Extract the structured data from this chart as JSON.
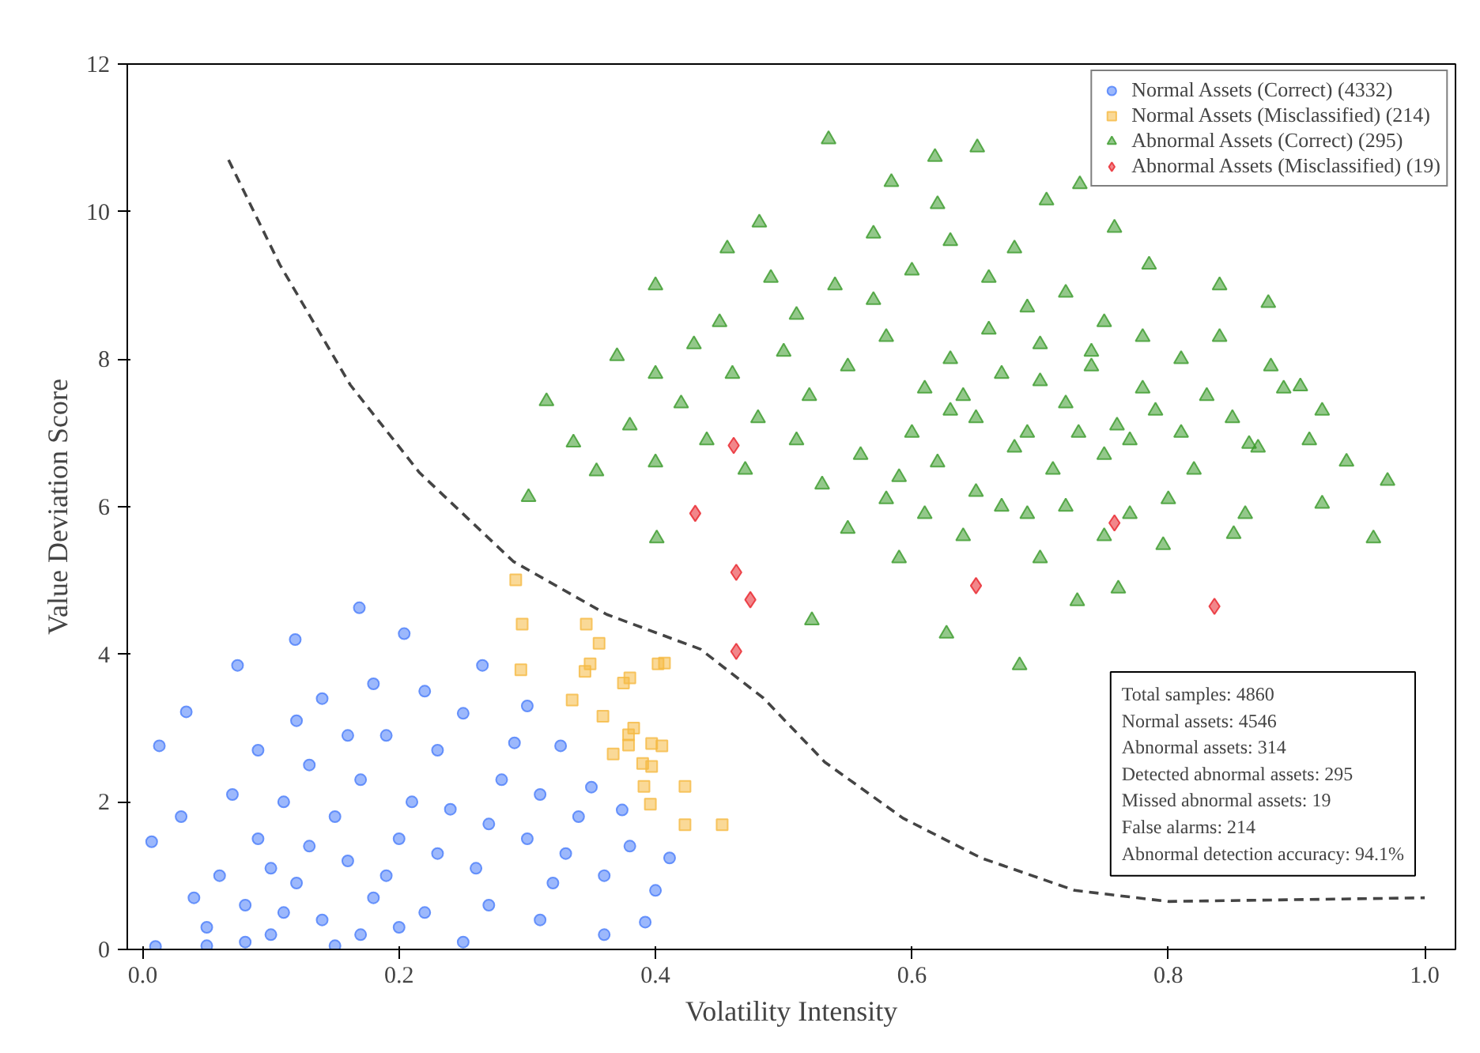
{
  "chart_data": {
    "type": "scatter",
    "xlabel": "Volatility Intensity",
    "ylabel": "Value Deviation Score",
    "xlim": [
      -0.012,
      1.024
    ],
    "ylim": [
      0,
      12
    ],
    "xticks": [
      {
        "value": 0,
        "label": "0.0"
      },
      {
        "value": 0.2,
        "label": "0.2"
      },
      {
        "value": 0.4,
        "label": "0.4"
      },
      {
        "value": 0.6,
        "label": "0.6"
      },
      {
        "value": 0.8,
        "label": "0.8"
      },
      {
        "value": 1.0,
        "label": "1.0"
      }
    ],
    "yticks": [
      0,
      2,
      4,
      6,
      8,
      10,
      12
    ],
    "grid": false,
    "legend": "top right",
    "series": [
      {
        "name": "Normal Assets (Correct) (4332)",
        "color": "#4a7dfa",
        "marker": "circle",
        "x": [
          0.169,
          0.119,
          0.074,
          0.034,
          0.013,
          0.007,
          0.265,
          0.326,
          0.374,
          0.411,
          0.392,
          0.01,
          0.204,
          0.3,
          0.35,
          0.4,
          0.36,
          0.25,
          0.15,
          0.05,
          0.05,
          0.08,
          0.1,
          0.12,
          0.14,
          0.16,
          0.18,
          0.2,
          0.22,
          0.24,
          0.26,
          0.28,
          0.3,
          0.32,
          0.34,
          0.06,
          0.09,
          0.11,
          0.13,
          0.15,
          0.17,
          0.19,
          0.21,
          0.23,
          0.25,
          0.27,
          0.29,
          0.31,
          0.33,
          0.36,
          0.38,
          0.04,
          0.07,
          0.09,
          0.12,
          0.14,
          0.18,
          0.22,
          0.16,
          0.2,
          0.27,
          0.31,
          0.03,
          0.1,
          0.13,
          0.17,
          0.19,
          0.23,
          0.11,
          0.08
        ],
        "values": [
          4.63,
          4.2,
          3.85,
          3.22,
          2.76,
          1.46,
          3.85,
          2.76,
          1.89,
          1.24,
          0.37,
          0.04,
          4.28,
          3.3,
          2.2,
          0.8,
          0.2,
          0.1,
          0.05,
          0.05,
          0.3,
          0.6,
          0.2,
          0.9,
          0.4,
          1.2,
          0.7,
          1.5,
          0.5,
          1.9,
          1.1,
          2.3,
          1.5,
          0.9,
          1.8,
          1.0,
          1.5,
          2.0,
          2.5,
          1.8,
          2.3,
          2.9,
          2.0,
          2.7,
          3.2,
          1.7,
          2.8,
          2.1,
          1.3,
          1.0,
          1.4,
          0.7,
          2.1,
          2.7,
          3.1,
          3.4,
          3.6,
          3.5,
          2.9,
          0.3,
          0.6,
          0.4,
          1.8,
          1.1,
          1.4,
          0.2,
          1.0,
          1.3,
          0.5,
          0.1
        ]
      },
      {
        "name": "Normal Assets (Misclassified) (214)",
        "color": "#f5b942",
        "marker": "square",
        "x": [
          0.291,
          0.296,
          0.295,
          0.346,
          0.356,
          0.349,
          0.345,
          0.335,
          0.38,
          0.375,
          0.402,
          0.407,
          0.359,
          0.383,
          0.379,
          0.379,
          0.397,
          0.405,
          0.367,
          0.39,
          0.397,
          0.391,
          0.423,
          0.396,
          0.423,
          0.452
        ],
        "values": [
          5.01,
          4.41,
          3.79,
          4.41,
          4.15,
          3.87,
          3.77,
          3.38,
          3.68,
          3.61,
          3.87,
          3.88,
          3.16,
          3.0,
          2.91,
          2.77,
          2.79,
          2.76,
          2.65,
          2.52,
          2.48,
          2.21,
          2.21,
          1.97,
          1.69,
          1.69
        ]
      },
      {
        "name": "Abnormal Assets (Correct) (295)",
        "color": "#3a9a2a",
        "marker": "triangle",
        "x": [
          0.535,
          0.651,
          0.618,
          0.584,
          0.481,
          0.456,
          0.4,
          0.37,
          0.315,
          0.336,
          0.301,
          0.354,
          0.401,
          0.522,
          0.627,
          0.684,
          0.761,
          0.863,
          0.939,
          0.971,
          0.96,
          0.903,
          0.878,
          0.84,
          0.758,
          0.705,
          0.731,
          0.785,
          0.92,
          0.851,
          0.796,
          0.729,
          0.55,
          0.58,
          0.61,
          0.63,
          0.65,
          0.67,
          0.69,
          0.7,
          0.72,
          0.74,
          0.76,
          0.78,
          0.6,
          0.62,
          0.64,
          0.66,
          0.68,
          0.71,
          0.73,
          0.75,
          0.77,
          0.79,
          0.81,
          0.83,
          0.82,
          0.85,
          0.87,
          0.89,
          0.52,
          0.5,
          0.48,
          0.46,
          0.44,
          0.42,
          0.47,
          0.51,
          0.53,
          0.56,
          0.58,
          0.61,
          0.65,
          0.69,
          0.72,
          0.77,
          0.8,
          0.57,
          0.6,
          0.63,
          0.66,
          0.69,
          0.72,
          0.75,
          0.78,
          0.81,
          0.84,
          0.54,
          0.51,
          0.49,
          0.45,
          0.43,
          0.4,
          0.38,
          0.4,
          0.55,
          0.59,
          0.64,
          0.7,
          0.75,
          0.86,
          0.91,
          0.88,
          0.92,
          0.68,
          0.62,
          0.57,
          0.59,
          0.67,
          0.74,
          0.63,
          0.7
        ],
        "values": [
          10.98,
          10.87,
          10.74,
          10.4,
          9.85,
          9.5,
          9.0,
          8.04,
          7.43,
          6.87,
          6.13,
          6.48,
          5.57,
          4.46,
          4.28,
          3.85,
          4.89,
          6.85,
          6.61,
          6.35,
          5.57,
          7.63,
          8.76,
          9.0,
          9.78,
          10.15,
          10.37,
          9.28,
          6.04,
          5.63,
          5.48,
          4.72,
          7.9,
          8.3,
          7.6,
          8.0,
          7.2,
          7.8,
          7.0,
          8.2,
          7.4,
          7.9,
          7.1,
          7.6,
          7.0,
          6.6,
          7.5,
          8.4,
          6.8,
          6.5,
          7.0,
          6.7,
          6.9,
          7.3,
          7.0,
          7.5,
          6.5,
          7.2,
          6.8,
          7.6,
          7.5,
          8.1,
          7.2,
          7.8,
          6.9,
          7.4,
          6.5,
          6.9,
          6.3,
          6.7,
          6.1,
          5.9,
          6.2,
          5.9,
          6.0,
          5.9,
          6.1,
          8.8,
          9.2,
          9.6,
          9.1,
          8.7,
          8.9,
          8.5,
          8.3,
          8.0,
          8.3,
          9.0,
          8.6,
          9.1,
          8.5,
          8.2,
          7.8,
          7.1,
          6.6,
          5.7,
          5.3,
          5.6,
          5.3,
          5.6,
          5.9,
          6.9,
          7.9,
          7.3,
          9.5,
          10.1,
          9.7,
          6.4,
          6.0,
          8.1,
          7.3,
          7.7
        ]
      },
      {
        "name": "Abnormal Assets (Misclassified) (19)",
        "color": "#e8232a",
        "marker": "diamond",
        "x": [
          0.461,
          0.431,
          0.463,
          0.474,
          0.463,
          0.65,
          0.758,
          0.836
        ],
        "values": [
          6.83,
          5.91,
          5.11,
          4.74,
          4.04,
          4.93,
          5.78,
          4.65
        ]
      },
      {
        "type": "line",
        "color": "#444444",
        "line_style": "dashed",
        "marker": "none",
        "x": [
          0.067,
          0.107,
          0.162,
          0.216,
          0.289,
          0.362,
          0.435,
          0.484,
          0.532,
          0.593,
          0.654,
          0.727,
          0.8,
          1.0
        ],
        "values": [
          10.7,
          9.28,
          7.65,
          6.46,
          5.26,
          4.54,
          4.07,
          3.41,
          2.54,
          1.78,
          1.24,
          0.8,
          0.65,
          0.7
        ]
      }
    ],
    "annotations": [
      "Total samples:  4860",
      "Normal assets:  4546",
      "Abnormal assets:  314",
      "Detected abnormal assets: 295",
      "Missed abnormal assets:  19",
      "False alarms: 214",
      "Abnormal detection accuracy: 94.1%"
    ]
  }
}
